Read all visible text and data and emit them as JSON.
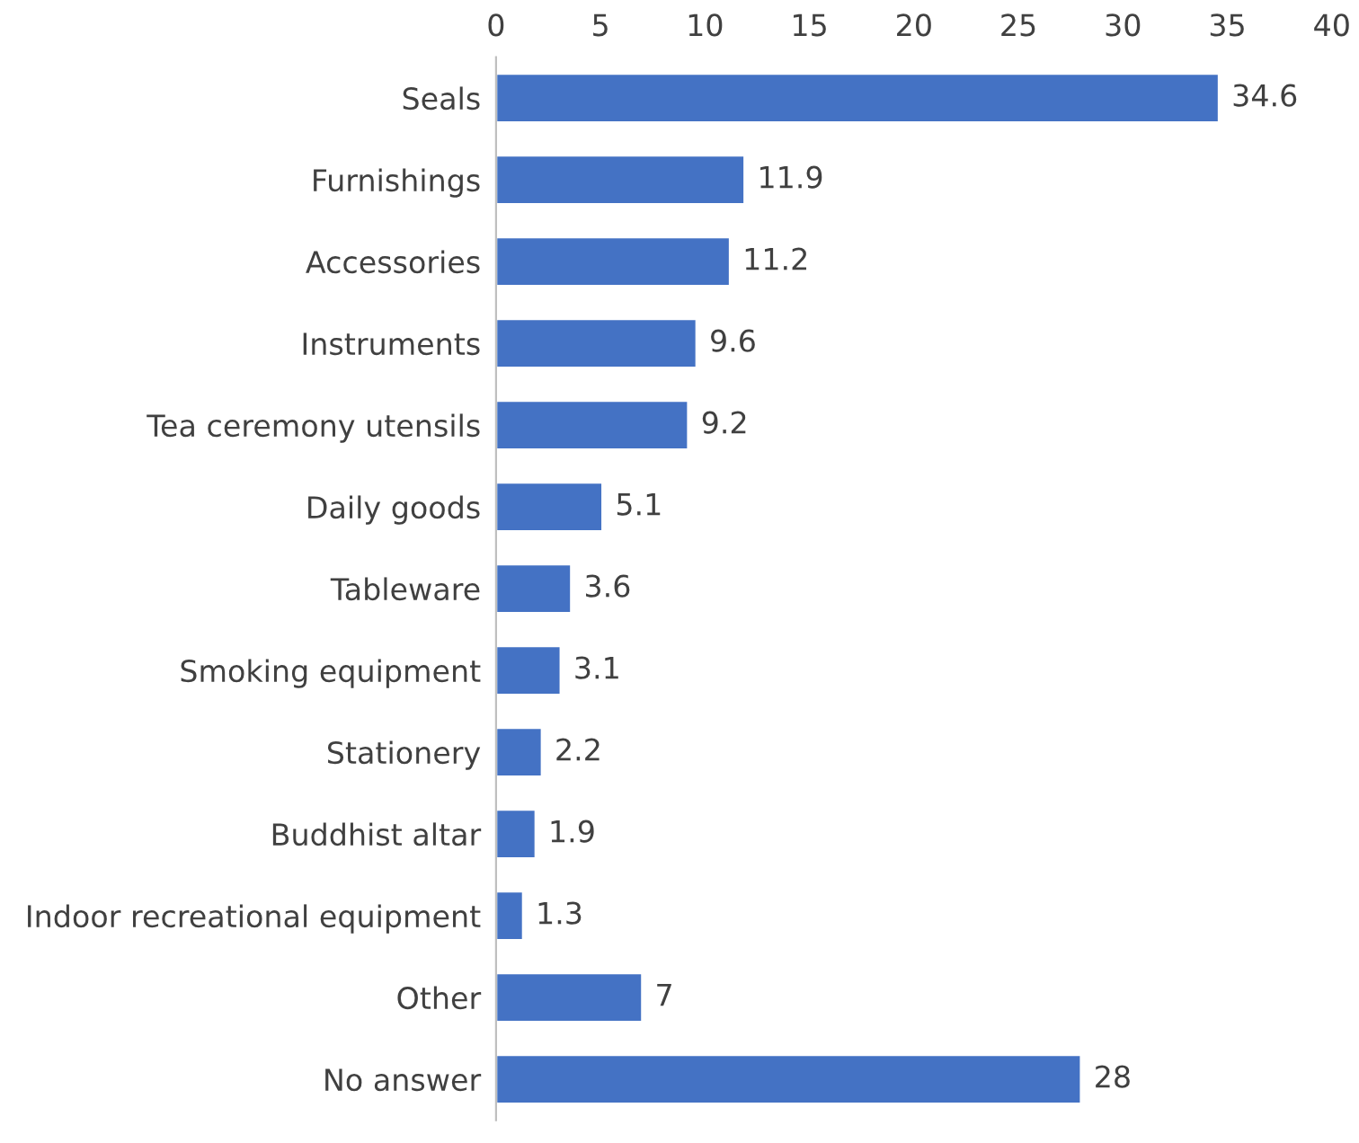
{
  "chart_data": {
    "type": "bar",
    "orientation": "horizontal",
    "categories": [
      "Seals",
      "Furnishings",
      "Accessories",
      "Instruments",
      "Tea ceremony utensils",
      "Daily goods",
      "Tableware",
      "Smoking equipment",
      "Stationery",
      "Buddhist altar",
      "Indoor recreational equipment",
      "Other",
      "No answer"
    ],
    "values": [
      34.6,
      11.9,
      11.2,
      9.6,
      9.2,
      5.1,
      3.6,
      3.1,
      2.2,
      1.9,
      1.3,
      7,
      28
    ],
    "color": "#4472c4",
    "xlim": [
      0,
      40
    ],
    "xticks": [
      0,
      5,
      10,
      15,
      20,
      25,
      30,
      35,
      40
    ],
    "data_labels": true,
    "grid": false,
    "legend": false
  }
}
